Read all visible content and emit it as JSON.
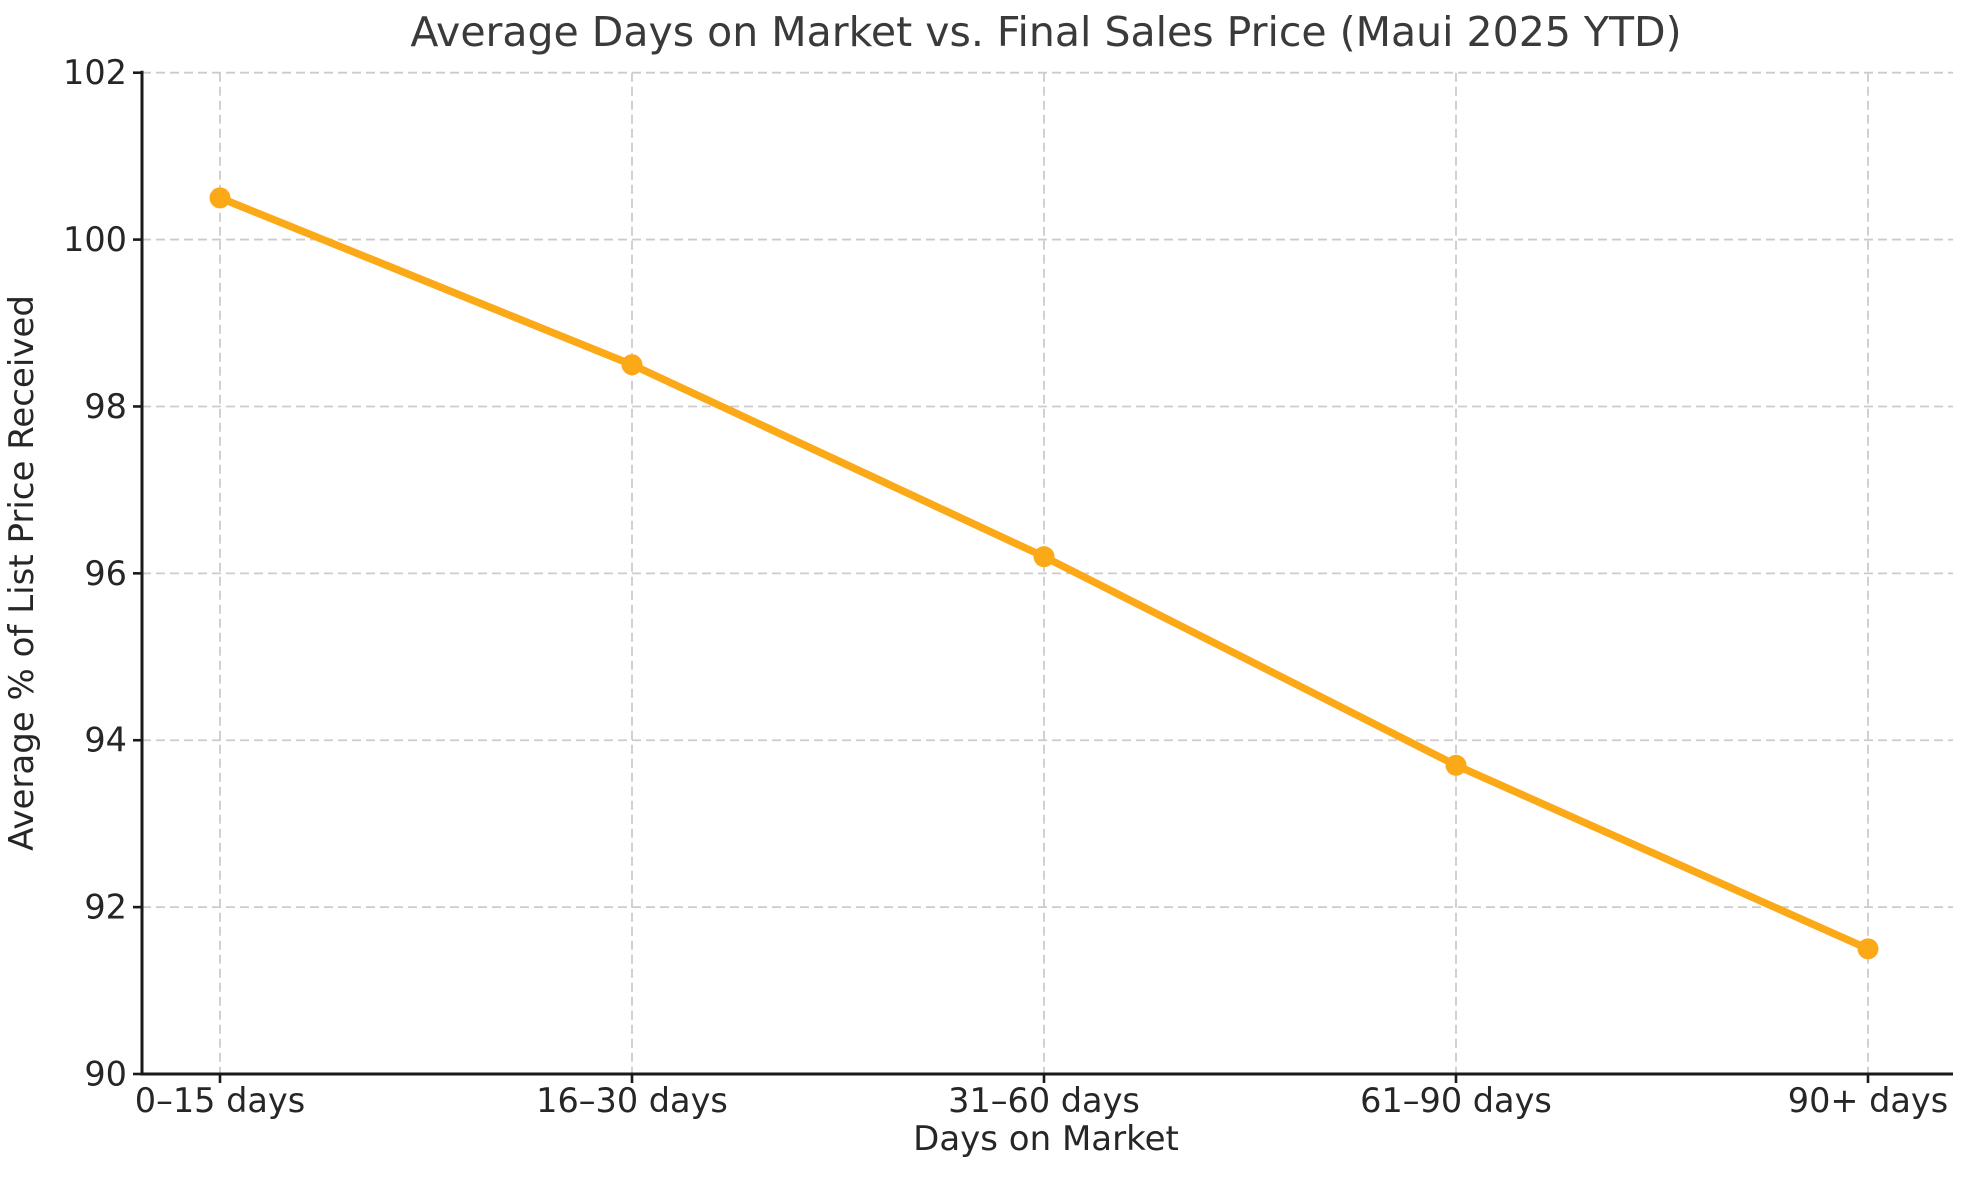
{
  "chart_data": {
    "type": "line",
    "title": "Average Days on Market vs. Final Sales Price (Maui 2025 YTD)",
    "xlabel": "Days on Market",
    "ylabel": "Average % of List Price Received",
    "categories": [
      "0–15 days",
      "16–30 days",
      "31–60 days",
      "61–90 days",
      "90+ days"
    ],
    "values": [
      100.5,
      98.5,
      96.2,
      93.7,
      91.5
    ],
    "ylim": [
      90,
      102
    ],
    "yticks": [
      90,
      92,
      94,
      96,
      98,
      100,
      102
    ],
    "grid": true,
    "grid_style": "dashed",
    "legend": "none",
    "marker": "circle",
    "colors": {
      "line": "#fca918",
      "marker": "#fca918",
      "grid": "#cccccc",
      "spine": "#1a1a1a",
      "tick_text": "#262626",
      "title_text": "#3a3a3a",
      "background": "#ffffff"
    }
  }
}
